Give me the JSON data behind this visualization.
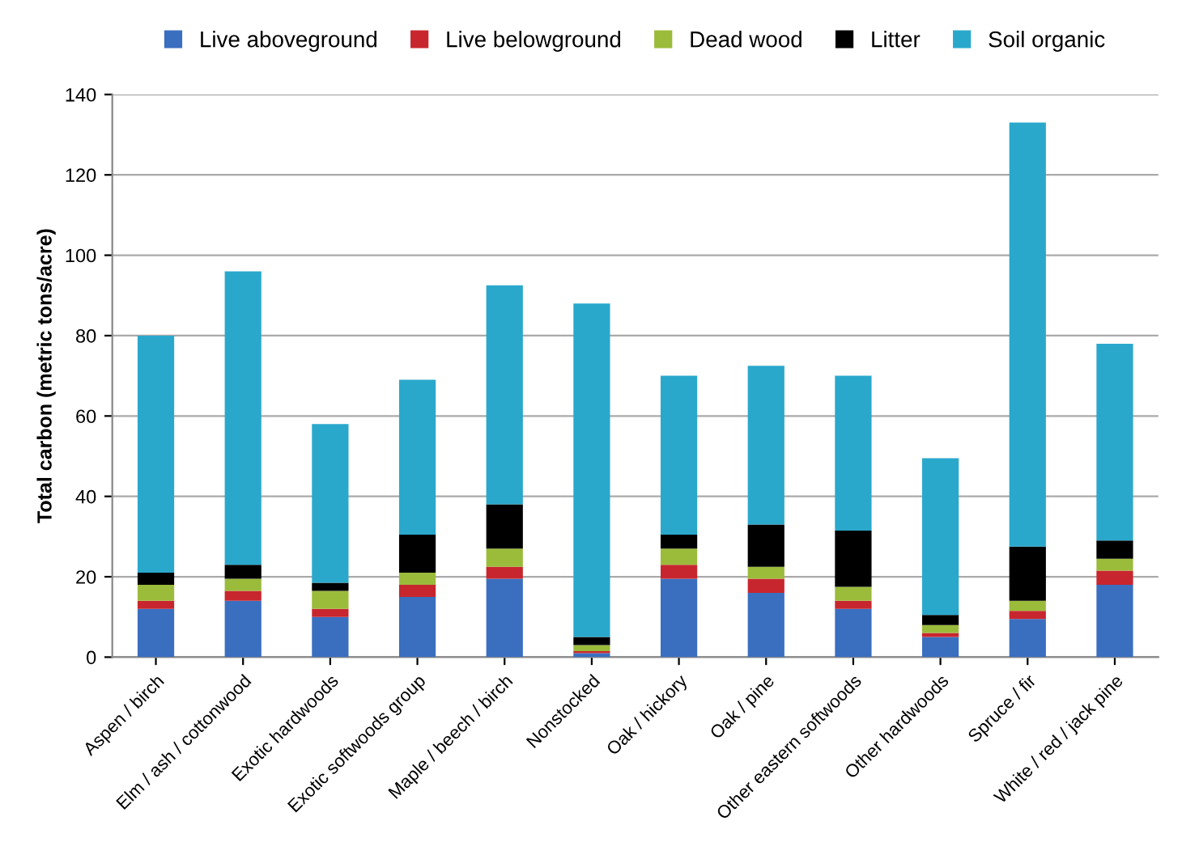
{
  "chart_data": {
    "type": "bar",
    "stacked": true,
    "ylabel": "Total carbon (metric tons/acre)",
    "categories": [
      "Aspen / birch",
      "Elm / ash / cottonwood",
      "Exotic hardwoods",
      "Exotic softwoods group",
      "Maple / beech / birch",
      "Nonstocked",
      "Oak / hickory",
      "Oak / pine",
      "Other eastern softwoods",
      "Other hardwoods",
      "Spruce / fir",
      "White / red / jack pine"
    ],
    "series": [
      {
        "name": "Live aboveground",
        "color": "#3a6fc0",
        "values": [
          12,
          14,
          10,
          15,
          19.5,
          1,
          19.5,
          16,
          12,
          5,
          9.5,
          18
        ]
      },
      {
        "name": "Live belowground",
        "color": "#c8262e",
        "values": [
          2,
          2.5,
          2,
          3,
          3,
          0.5,
          3.5,
          3.5,
          2,
          1,
          2,
          3.5
        ]
      },
      {
        "name": "Dead wood",
        "color": "#9bbb3b",
        "values": [
          4,
          3,
          4.5,
          3,
          4.5,
          1.5,
          4,
          3,
          3.5,
          2,
          2.5,
          3
        ]
      },
      {
        "name": "Litter",
        "color": "#000000",
        "values": [
          3,
          3.5,
          2,
          9.5,
          11,
          2,
          3.5,
          10.5,
          14,
          2.5,
          13.5,
          4.5
        ]
      },
      {
        "name": "Soil organic",
        "color": "#2aa8cc",
        "values": [
          59,
          73,
          39.5,
          38.5,
          54.5,
          83,
          39.5,
          39.5,
          38.5,
          39,
          105.5,
          49
        ]
      }
    ],
    "ylim": [
      0,
      140
    ],
    "yticks": [
      0,
      20,
      40,
      60,
      80,
      100,
      120,
      140
    ],
    "grid": "y",
    "legend": "top"
  }
}
